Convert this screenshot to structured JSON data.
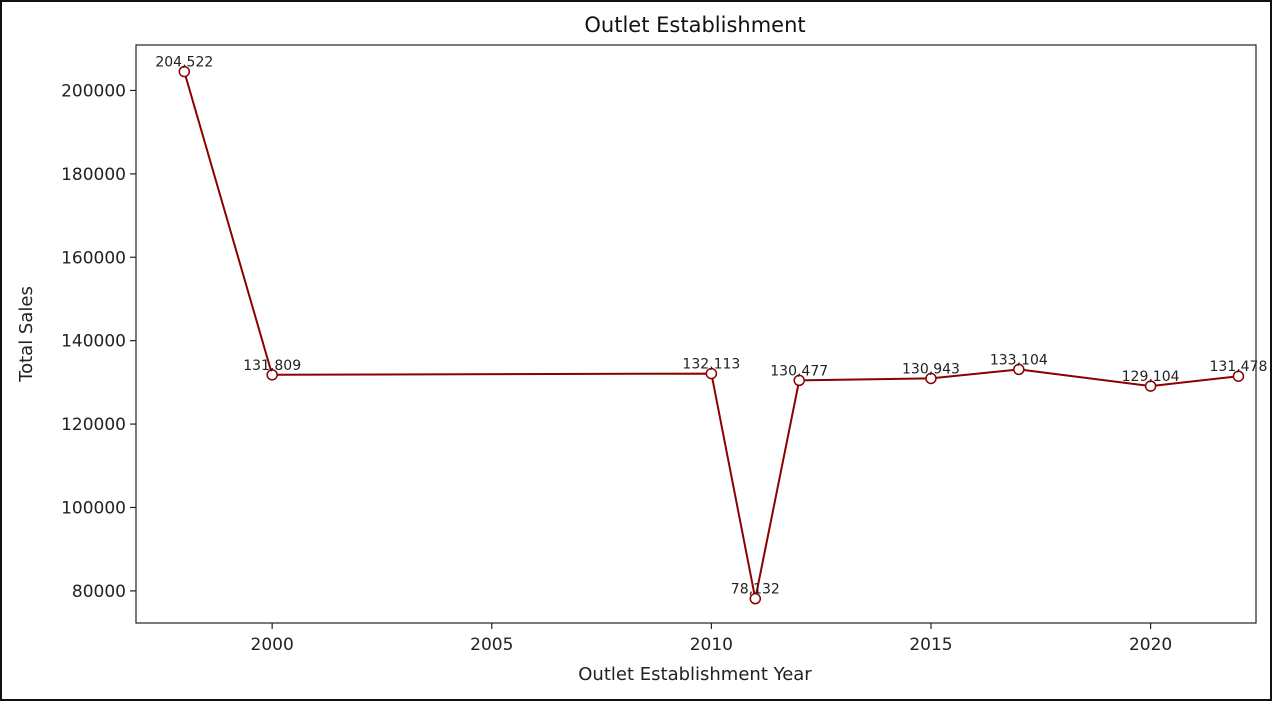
{
  "chart_data": {
    "type": "line",
    "title": "Outlet Establishment",
    "xlabel": "Outlet Establishment Year",
    "ylabel": "Total Sales",
    "xlim": [
      1996.9,
      2022.4
    ],
    "ylim": [
      72300,
      210900
    ],
    "xticks": [
      2000,
      2005,
      2010,
      2015,
      2020
    ],
    "yticks": [
      80000,
      100000,
      120000,
      140000,
      160000,
      180000,
      200000
    ],
    "grid": false,
    "series": [
      {
        "x": [
          1998,
          2000,
          2010,
          2011,
          2012,
          2015,
          2017,
          2020,
          2022
        ],
        "values": [
          204522,
          131809,
          132113,
          78132,
          130477,
          130943,
          133104,
          129104,
          131478
        ],
        "data_labels": [
          "204,522",
          "131,809",
          "132,113",
          "78,132",
          "130,477",
          "130,943",
          "133,104",
          "129,104",
          "131,478"
        ],
        "color": "#8b0000",
        "marker": "circle-hollow"
      }
    ]
  }
}
